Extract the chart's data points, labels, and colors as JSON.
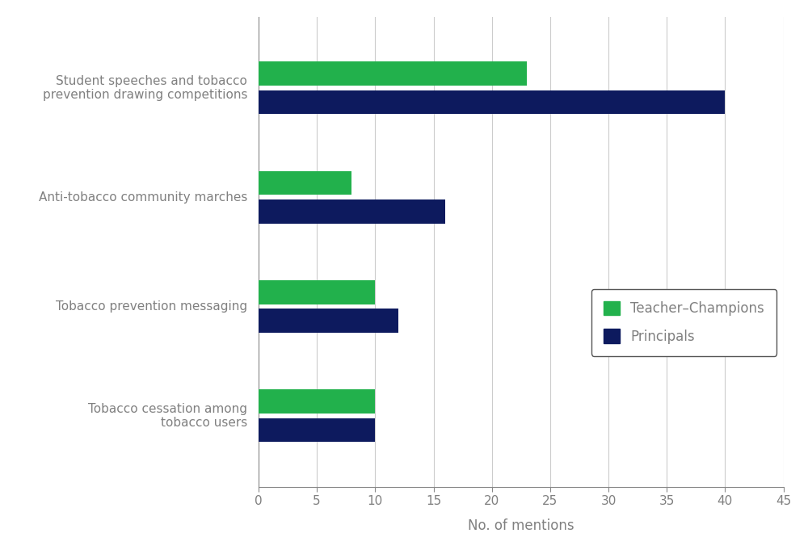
{
  "categories": [
    "Tobacco cessation among\ntobacco users",
    "Tobacco prevention messaging",
    "Anti-tobacco community marches",
    "Student speeches and tobacco\nprevention drawing competitions"
  ],
  "teacher_champions": [
    10,
    10,
    8,
    23
  ],
  "principals": [
    10,
    12,
    16,
    40
  ],
  "teacher_color": "#22b14c",
  "principal_color": "#0d1a5e",
  "xlabel": "No. of mentions",
  "xlim": [
    0,
    45
  ],
  "xticks": [
    0,
    5,
    10,
    15,
    20,
    25,
    30,
    35,
    40,
    45
  ],
  "bar_height": 0.22,
  "bar_gap": 0.04,
  "legend_labels": [
    "Teacher–Champions",
    "Principals"
  ],
  "label_color": "#808080",
  "figsize": [
    10.0,
    6.81
  ],
  "dpi": 100
}
